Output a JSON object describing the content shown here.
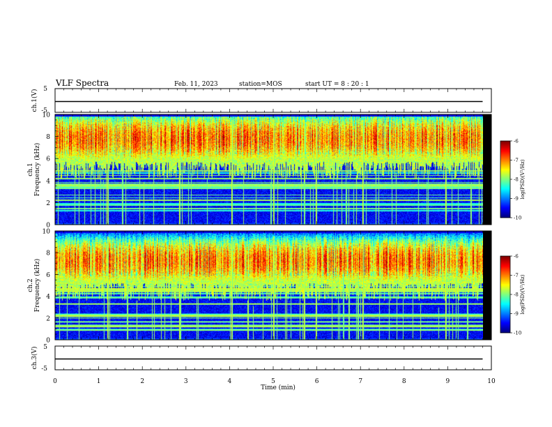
{
  "header": {
    "title": "VLF Spectra",
    "date": "Feb. 11, 2023",
    "station": "station=MOS",
    "start_ut": "start  UT  =   8  : 20 : 1"
  },
  "axes": {
    "ch1_label": "ch.1(V)",
    "ch3_label": "ch.3(V)",
    "spec1_label_a": "ch.1",
    "spec2_label_a": "ch.2",
    "freq_label": "Frequency (kHz)",
    "time_label": "Time (min)",
    "colorbar_label": "log(PSD)(V²/Hz)"
  },
  "chart_data": [
    {
      "type": "line",
      "name": "ch.1 waveform",
      "ylabel": "ch.1(V)",
      "ylim": [
        -5,
        5
      ],
      "yticks": [
        "5",
        "-5"
      ],
      "xlim": [
        0,
        10
      ],
      "x": [
        0,
        9.8
      ],
      "y": [
        0,
        0
      ],
      "grid": false
    },
    {
      "type": "heatmap",
      "name": "ch.1 spectrogram",
      "xlabel": "Time (min)",
      "ylabel": "Frequency (kHz)",
      "xlim": [
        0,
        10
      ],
      "data_xmax": 9.8,
      "ylim": [
        0,
        10
      ],
      "yticks": [
        "0",
        "2",
        "4",
        "6",
        "8",
        "10"
      ],
      "colorbar": {
        "range": [
          -10,
          -6
        ],
        "ticks": [
          "-6",
          "-7",
          "-8",
          "-9",
          "-10"
        ],
        "label": "log(PSD)(V²/Hz)"
      },
      "band_peak_khz": [
        6.0,
        9.6
      ],
      "band_peak_logpsd": -6.3,
      "background_logpsd": -9.8,
      "spikes_min": [
        1.2,
        2.85,
        4.05,
        5.0,
        5.7,
        5.98,
        7.05,
        8.95
      ]
    },
    {
      "type": "heatmap",
      "name": "ch.2 spectrogram",
      "xlabel": "Time (min)",
      "ylabel": "Frequency (kHz)",
      "xlim": [
        0,
        10
      ],
      "data_xmax": 9.8,
      "ylim": [
        0,
        10
      ],
      "yticks": [
        "0",
        "2",
        "4",
        "6",
        "8",
        "10"
      ],
      "colorbar": {
        "range": [
          -10,
          -6
        ],
        "ticks": [
          "-6",
          "-7",
          "-8",
          "-9",
          "-10"
        ],
        "label": "log(PSD)(V²/Hz)"
      },
      "band_peak_khz": [
        5.5,
        9.0
      ],
      "band_peak_logpsd": -6.3,
      "background_logpsd": -9.8,
      "spikes_min": [
        1.2,
        2.85,
        4.05,
        5.0,
        5.7,
        5.98,
        7.05,
        8.95
      ]
    },
    {
      "type": "line",
      "name": "ch.3 waveform",
      "ylabel": "ch.3(V)",
      "ylim": [
        -5,
        5
      ],
      "yticks": [
        "5",
        "-5"
      ],
      "xlim": [
        0,
        10
      ],
      "x": [
        0,
        9.8
      ],
      "y": [
        0,
        0
      ],
      "xticks": [
        "0",
        "1",
        "2",
        "3",
        "4",
        "5",
        "6",
        "7",
        "8",
        "9",
        "10"
      ],
      "grid": false
    }
  ]
}
